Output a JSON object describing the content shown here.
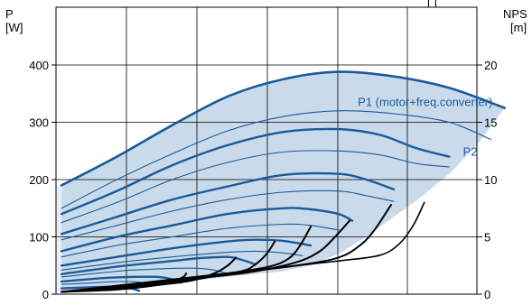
{
  "chart_data": {
    "type": "line",
    "left_axis": {
      "label": "P",
      "unit": "[W]",
      "ylim": [
        0,
        400
      ],
      "ticks": [
        0,
        100,
        200,
        300,
        400
      ]
    },
    "right_axis": {
      "label": "NPS",
      "unit": "[m]",
      "ylim": [
        0,
        20
      ],
      "ticks": [
        0,
        5,
        10,
        15,
        20
      ]
    },
    "top_right_text": "[   ]",
    "grid": true,
    "colors": {
      "power_curve": "#1a5a9a",
      "power_band": "#c9dbea",
      "power_band_light": "#e6eff7",
      "npsh_curve": "#000000",
      "grid": "#000000"
    },
    "band": {
      "upper": [
        [
          0,
          190
        ],
        [
          20,
          240
        ],
        [
          40,
          295
        ],
        [
          60,
          345
        ],
        [
          80,
          375
        ],
        [
          100,
          388
        ],
        [
          120,
          380
        ],
        [
          140,
          360
        ],
        [
          160,
          325
        ]
      ],
      "lower": [
        [
          160,
          325
        ],
        [
          150,
          260
        ],
        [
          140,
          210
        ],
        [
          130,
          170
        ],
        [
          120,
          135
        ],
        [
          110,
          100
        ],
        [
          100,
          70
        ],
        [
          90,
          50
        ],
        [
          80,
          40
        ],
        [
          60,
          30
        ],
        [
          40,
          20
        ],
        [
          20,
          10
        ],
        [
          0,
          5
        ]
      ]
    },
    "series": [
      {
        "name": "P1 (motor+freq.converter)",
        "label_at": [
          107,
          336
        ],
        "points": [
          [
            0,
            190
          ],
          [
            20,
            240
          ],
          [
            40,
            295
          ],
          [
            60,
            345
          ],
          [
            80,
            375
          ],
          [
            100,
            388
          ],
          [
            120,
            380
          ],
          [
            140,
            360
          ],
          [
            160,
            325
          ]
        ]
      },
      {
        "name": "P2",
        "label_at": [
          145,
          250
        ],
        "points": [
          [
            0,
            150
          ],
          [
            20,
            200
          ],
          [
            40,
            245
          ],
          [
            60,
            285
          ],
          [
            80,
            310
          ],
          [
            100,
            320
          ],
          [
            120,
            315
          ],
          [
            140,
            300
          ],
          [
            155,
            270
          ]
        ]
      }
    ],
    "power_curves": [
      {
        "points": [
          [
            0,
            140
          ],
          [
            20,
            180
          ],
          [
            40,
            225
          ],
          [
            60,
            260
          ],
          [
            80,
            283
          ],
          [
            100,
            288
          ],
          [
            115,
            278
          ],
          [
            128,
            255
          ],
          [
            140,
            240
          ]
        ],
        "emphasis": "bold"
      },
      {
        "points": [
          [
            0,
            125
          ],
          [
            20,
            160
          ],
          [
            40,
            200
          ],
          [
            60,
            230
          ],
          [
            80,
            248
          ],
          [
            100,
            250
          ],
          [
            115,
            243
          ],
          [
            128,
            228
          ],
          [
            140,
            222
          ]
        ],
        "emphasis": "thin"
      },
      {
        "points": [
          [
            0,
            105
          ],
          [
            20,
            135
          ],
          [
            40,
            165
          ],
          [
            60,
            188
          ],
          [
            80,
            208
          ],
          [
            100,
            210
          ],
          [
            110,
            200
          ],
          [
            120,
            183
          ]
        ],
        "emphasis": "bold"
      },
      {
        "points": [
          [
            0,
            95
          ],
          [
            20,
            120
          ],
          [
            40,
            145
          ],
          [
            60,
            165
          ],
          [
            80,
            178
          ],
          [
            100,
            180
          ],
          [
            110,
            172
          ],
          [
            120,
            162
          ]
        ],
        "emphasis": "thin"
      },
      {
        "points": [
          [
            0,
            75
          ],
          [
            20,
            100
          ],
          [
            40,
            120
          ],
          [
            60,
            140
          ],
          [
            80,
            150
          ],
          [
            90,
            148
          ],
          [
            100,
            140
          ],
          [
            105,
            128
          ]
        ],
        "emphasis": "bold"
      },
      {
        "points": [
          [
            0,
            65
          ],
          [
            20,
            85
          ],
          [
            40,
            100
          ],
          [
            60,
            115
          ],
          [
            80,
            122
          ],
          [
            90,
            120
          ],
          [
            100,
            112
          ]
        ],
        "emphasis": "thin"
      },
      {
        "points": [
          [
            0,
            50
          ],
          [
            20,
            65
          ],
          [
            40,
            80
          ],
          [
            60,
            92
          ],
          [
            70,
            95
          ],
          [
            80,
            93
          ],
          [
            90,
            85
          ]
        ],
        "emphasis": "bold"
      },
      {
        "points": [
          [
            0,
            42
          ],
          [
            20,
            55
          ],
          [
            40,
            65
          ],
          [
            60,
            73
          ],
          [
            70,
            75
          ],
          [
            80,
            72
          ],
          [
            87,
            67
          ]
        ],
        "emphasis": "thin"
      },
      {
        "points": [
          [
            0,
            35
          ],
          [
            20,
            48
          ],
          [
            40,
            58
          ],
          [
            50,
            63
          ],
          [
            60,
            65
          ],
          [
            65,
            60
          ],
          [
            70,
            52
          ]
        ],
        "emphasis": "bold"
      },
      {
        "points": [
          [
            0,
            30
          ],
          [
            20,
            40
          ],
          [
            30,
            43
          ],
          [
            40,
            45
          ],
          [
            50,
            45
          ],
          [
            55,
            42
          ],
          [
            60,
            36
          ]
        ],
        "emphasis": "thin"
      },
      {
        "points": [
          [
            0,
            22
          ],
          [
            15,
            28
          ],
          [
            25,
            30
          ],
          [
            35,
            30
          ],
          [
            40,
            26
          ],
          [
            43,
            20
          ]
        ],
        "emphasis": "bold"
      },
      {
        "points": [
          [
            0,
            17
          ],
          [
            12,
            20
          ],
          [
            20,
            22
          ],
          [
            28,
            21
          ],
          [
            32,
            17
          ]
        ],
        "emphasis": "thin"
      },
      {
        "points": [
          [
            0,
            10
          ],
          [
            10,
            12
          ],
          [
            20,
            13
          ],
          [
            25,
            10
          ],
          [
            28,
            6
          ]
        ],
        "emphasis": "bold"
      }
    ],
    "npsh_curves": [
      {
        "points": [
          [
            0,
            0.2
          ],
          [
            20,
            0.4
          ],
          [
            35,
            0.8
          ],
          [
            40,
            1.1
          ],
          [
            44,
            1.5
          ],
          [
            45,
            1.8
          ]
        ],
        "emphasis": "bold"
      },
      {
        "points": [
          [
            0,
            0.2
          ],
          [
            25,
            0.6
          ],
          [
            45,
            1.1
          ],
          [
            55,
            1.8
          ],
          [
            60,
            2.5
          ],
          [
            63,
            3.2
          ]
        ],
        "emphasis": "bold"
      },
      {
        "points": [
          [
            0,
            0.2
          ],
          [
            30,
            0.8
          ],
          [
            50,
            1.4
          ],
          [
            65,
            2.0
          ],
          [
            70,
            2.6
          ],
          [
            74,
            3.5
          ],
          [
            77,
            4.6
          ]
        ],
        "emphasis": "bold"
      },
      {
        "points": [
          [
            0,
            0.2
          ],
          [
            40,
            1.0
          ],
          [
            60,
            1.8
          ],
          [
            75,
            2.4
          ],
          [
            82,
            3.1
          ],
          [
            86,
            4.2
          ],
          [
            90,
            5.9
          ]
        ],
        "emphasis": "bold"
      },
      {
        "points": [
          [
            0,
            0.2
          ],
          [
            50,
            1.4
          ],
          [
            70,
            2.0
          ],
          [
            85,
            2.8
          ],
          [
            93,
            3.7
          ],
          [
            98,
            4.8
          ],
          [
            104,
            6.4
          ]
        ],
        "emphasis": "bold"
      },
      {
        "points": [
          [
            0,
            0.2
          ],
          [
            60,
            1.8
          ],
          [
            85,
            2.5
          ],
          [
            100,
            3.2
          ],
          [
            108,
            4.3
          ],
          [
            113,
            5.6
          ],
          [
            119,
            7.8
          ]
        ],
        "emphasis": "bold"
      },
      {
        "points": [
          [
            0,
            0.2
          ],
          [
            70,
            2.1
          ],
          [
            100,
            2.9
          ],
          [
            115,
            3.4
          ],
          [
            122,
            4.4
          ],
          [
            127,
            6.0
          ],
          [
            131,
            8.0
          ]
        ],
        "emphasis": "thin"
      }
    ],
    "xlim": [
      -2,
      150
    ]
  }
}
